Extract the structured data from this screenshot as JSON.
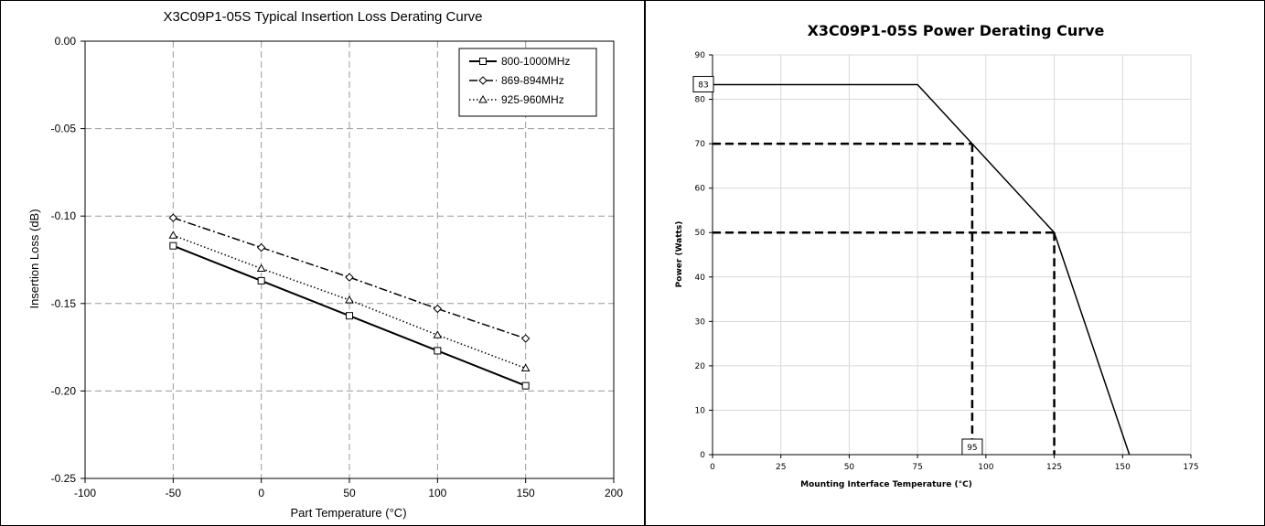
{
  "chart_data": [
    {
      "type": "line",
      "title": "X3C09P1-05S Typical Insertion Loss Derating Curve",
      "xlabel": "Part Temperature (°C)",
      "ylabel": "Insertion Loss (dB)",
      "xlim": [
        -100,
        200
      ],
      "ylim": [
        -0.25,
        0.0
      ],
      "x_ticks": [
        -100,
        -50,
        0,
        50,
        100,
        150,
        200
      ],
      "x_tick_labels": [
        "-100",
        "-50",
        "0",
        "50",
        "100",
        "150",
        "200"
      ],
      "y_ticks": [
        0.0,
        -0.05,
        -0.1,
        -0.15,
        -0.2,
        -0.25
      ],
      "y_tick_labels": [
        "0.00",
        "-0.05",
        "-0.10",
        "-0.15",
        "-0.20",
        "-0.25"
      ],
      "grid": true,
      "legend_position": "top-right",
      "x": [
        -50,
        0,
        50,
        100,
        150
      ],
      "series": [
        {
          "name": "800-1000MHz",
          "line_style": "solid",
          "marker": "square",
          "values": [
            -0.117,
            -0.137,
            -0.157,
            -0.177,
            -0.197
          ]
        },
        {
          "name": "869-894MHz",
          "line_style": "dash-dot",
          "marker": "diamond",
          "values": [
            -0.101,
            -0.118,
            -0.135,
            -0.153,
            -0.17
          ]
        },
        {
          "name": "925-960MHz",
          "line_style": "dotted",
          "marker": "triangle",
          "values": [
            -0.111,
            -0.13,
            -0.148,
            -0.168,
            -0.187
          ]
        }
      ]
    },
    {
      "type": "line",
      "title": "X3C09P1-05S Power Derating Curve",
      "xlabel": "Mounting Interface Temperature (°C)",
      "ylabel": "Power (Watts)",
      "xlim": [
        0,
        175
      ],
      "ylim": [
        0,
        90
      ],
      "x_ticks": [
        0,
        25,
        50,
        75,
        100,
        125,
        150,
        175
      ],
      "x_tick_labels": [
        "0",
        "25",
        "50",
        "75",
        "100",
        "125",
        "150",
        "175"
      ],
      "y_ticks": [
        0,
        10,
        20,
        30,
        40,
        50,
        60,
        70,
        80,
        90
      ],
      "y_tick_labels": [
        "0",
        "10",
        "20",
        "30",
        "40",
        "50",
        "60",
        "70",
        "80",
        "90"
      ],
      "grid": true,
      "series": [
        {
          "line_style": "solid",
          "x": [
            0,
            75,
            125,
            152.5
          ],
          "values": [
            83.3,
            83.3,
            50,
            0
          ]
        }
      ],
      "reference_lines": [
        {
          "x": [
            0,
            95
          ],
          "y": [
            70,
            70
          ]
        },
        {
          "x": [
            95,
            95
          ],
          "y": [
            70,
            0
          ]
        },
        {
          "x": [
            0,
            125
          ],
          "y": [
            50,
            50
          ]
        },
        {
          "x": [
            125,
            125
          ],
          "y": [
            50,
            0
          ]
        }
      ],
      "annotations": [
        {
          "text": "83",
          "x": 0,
          "y": 83.3
        },
        {
          "text": "95",
          "x": 95,
          "y": 0
        }
      ]
    }
  ]
}
